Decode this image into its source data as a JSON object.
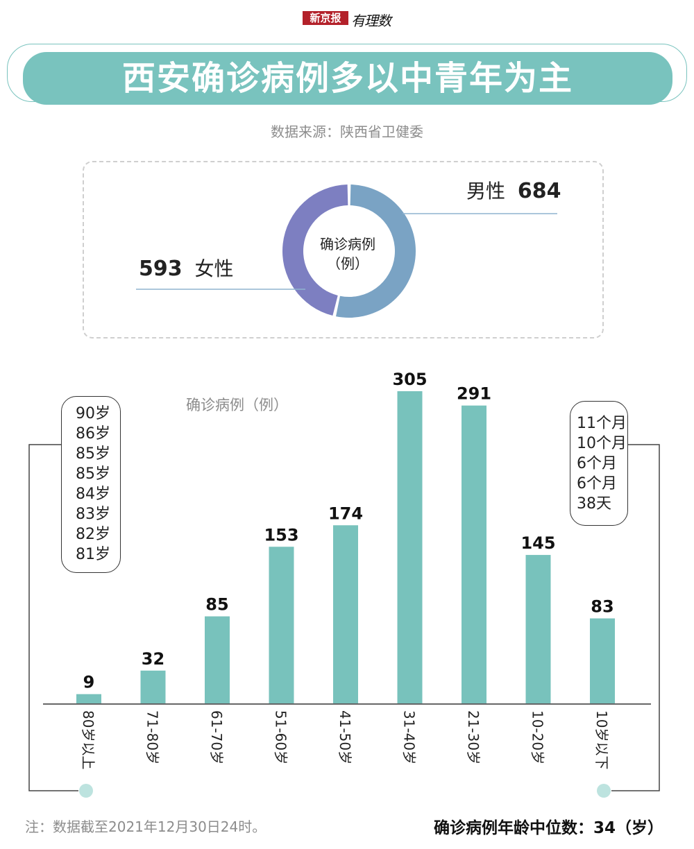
{
  "header": {
    "brand_box": "新京报",
    "brand_script": "有理数",
    "title": "西安确诊病例多以中青年为主",
    "source": "数据来源：陕西省卫健委"
  },
  "gender": {
    "center_line1": "确诊病例",
    "center_line2": "（例）",
    "male_label": "男性",
    "male_value": "684",
    "female_label": "女性",
    "female_value": "593",
    "colors": {
      "male": "#7aa3c4",
      "female": "#7d7fc1"
    }
  },
  "chart_data": {
    "type": "bar",
    "ylabel": "确诊病例（例）",
    "categories": [
      "80岁以上",
      "71-80岁",
      "61-70岁",
      "51-60岁",
      "41-50岁",
      "31-40岁",
      "21-30岁",
      "10-20岁",
      "10岁以下"
    ],
    "values": [
      9,
      32,
      85,
      153,
      174,
      305,
      291,
      145,
      83
    ],
    "ylim": [
      0,
      305
    ],
    "bar_color": "#78c2bc",
    "grid": false
  },
  "elderly_ages": [
    "90岁",
    "86岁",
    "85岁",
    "85岁",
    "84岁",
    "83岁",
    "82岁",
    "81岁"
  ],
  "infant_ages": [
    "11个月",
    "10个月",
    "6个月",
    "6个月",
    "38天"
  ],
  "footer": {
    "note": "注：数据截至2021年12月30日24时。",
    "median": "确诊病例年龄中位数：34（岁）"
  }
}
